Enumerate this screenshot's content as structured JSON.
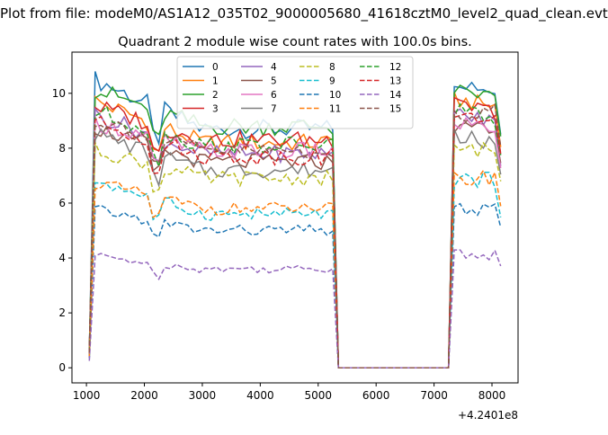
{
  "page": {
    "suptitle": "Plot from file: modeM0/AS1A12_035T02_9000005680_41618cztM0_level2_quad_clean.evt"
  },
  "chart_data": {
    "type": "line",
    "title": "Quadrant 2 module wise count rates with 100.0s bins.",
    "xlabel": "",
    "ylabel": "",
    "x_offset_label": "+4.2401e8",
    "xlim": [
      750,
      8450
    ],
    "ylim": [
      -0.55,
      11.5
    ],
    "xticks": [
      1000,
      2000,
      3000,
      4000,
      5000,
      6000,
      7000,
      8000
    ],
    "yticks": [
      0,
      2,
      4,
      6,
      8,
      10
    ],
    "grid": false,
    "legend": {
      "placement": "top-center",
      "columns": 4
    },
    "x": [
      1050,
      1150,
      1250,
      1350,
      1450,
      1550,
      1650,
      1750,
      1850,
      1950,
      2050,
      2150,
      2250,
      2350,
      2450,
      2550,
      2650,
      2750,
      2850,
      2950,
      3050,
      3150,
      3250,
      3350,
      3450,
      3550,
      3650,
      3750,
      3850,
      3950,
      4050,
      4150,
      4250,
      4350,
      4450,
      4550,
      4650,
      4750,
      4850,
      4950,
      5050,
      5150,
      5250,
      5350,
      5450,
      5550,
      5650,
      5750,
      5850,
      5950,
      6050,
      6150,
      6250,
      6350,
      6450,
      6550,
      6650,
      6750,
      6850,
      6950,
      7050,
      7150,
      7250,
      7350,
      7450,
      7550,
      7650,
      7750,
      7850,
      7950,
      8050,
      8150
    ],
    "series": [
      {
        "name": "0",
        "color": "#1f77b4",
        "dash": "solid",
        "level": 8.7,
        "active_start": 10.6,
        "active_end": 10.0
      },
      {
        "name": "1",
        "color": "#ff7f0e",
        "dash": "solid",
        "level": 8.2,
        "active_start": 9.8,
        "active_end": 9.5
      },
      {
        "name": "2",
        "color": "#2ca02c",
        "dash": "solid",
        "level": 8.8,
        "active_start": 10.2,
        "active_end": 9.8
      },
      {
        "name": "3",
        "color": "#d62728",
        "dash": "solid",
        "level": 8.3,
        "active_start": 9.6,
        "active_end": 9.3
      },
      {
        "name": "4",
        "color": "#9467bd",
        "dash": "solid",
        "level": 7.8,
        "active_start": 9.3,
        "active_end": 8.9
      },
      {
        "name": "5",
        "color": "#8c564b",
        "dash": "solid",
        "level": 7.5,
        "active_start": 8.8,
        "active_end": 8.5
      },
      {
        "name": "6",
        "color": "#e377c2",
        "dash": "solid",
        "level": 7.9,
        "active_start": 9.0,
        "active_end": 8.7
      },
      {
        "name": "7",
        "color": "#7f7f7f",
        "dash": "solid",
        "level": 7.2,
        "active_start": 8.6,
        "active_end": 8.0
      },
      {
        "name": "8",
        "color": "#bcbd22",
        "dash": "dashed",
        "level": 6.9,
        "active_start": 8.0,
        "active_end": 7.9
      },
      {
        "name": "9",
        "color": "#17becf",
        "dash": "dashed",
        "level": 5.6,
        "active_start": 6.9,
        "active_end": 6.8
      },
      {
        "name": "10",
        "color": "#1f77b4",
        "dash": "dashed",
        "level": 5.0,
        "active_start": 5.8,
        "active_end": 5.7
      },
      {
        "name": "11",
        "color": "#ff7f0e",
        "dash": "dashed",
        "level": 5.8,
        "active_start": 6.8,
        "active_end": 7.0
      },
      {
        "name": "12",
        "color": "#2ca02c",
        "dash": "dashed",
        "level": 8.1,
        "active_start": 9.4,
        "active_end": 9.0
      },
      {
        "name": "13",
        "color": "#d62728",
        "dash": "dashed",
        "level": 7.7,
        "active_start": 9.0,
        "active_end": 9.2
      },
      {
        "name": "14",
        "color": "#9467bd",
        "dash": "dashed",
        "level": 3.6,
        "active_start": 4.1,
        "active_end": 4.2
      },
      {
        "name": "15",
        "color": "#8c564b",
        "dash": "dashed",
        "level": 7.9,
        "active_start": 9.1,
        "active_end": 9.5
      }
    ],
    "gap_start_x": 5350,
    "gap_end_x": 7250,
    "gap_value": 0
  }
}
